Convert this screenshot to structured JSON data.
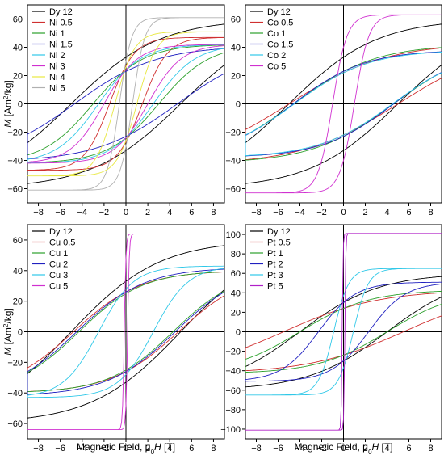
{
  "chart_data": [
    {
      "type": "line",
      "xlim": [
        -9,
        9
      ],
      "ylim": [
        -70,
        70
      ],
      "x_ticks": [
        -8,
        -6,
        -4,
        -2,
        0,
        2,
        4,
        6,
        8
      ],
      "y_ticks": [
        -60,
        -40,
        -20,
        0,
        20,
        40,
        60
      ],
      "ylabel": "M [Am²/kg]",
      "xlabel": "",
      "legend_position": "top-left",
      "series": [
        {
          "name": "Dy 12",
          "color": "#000000",
          "Ms": 60,
          "Hc": 5.0,
          "Mr": 33,
          "w": 1.1
        },
        {
          "name": "Ni 0.5",
          "color": "#d03030",
          "Ms": 47,
          "Hc": 1.5,
          "Mr": 27,
          "w": 1.8
        },
        {
          "name": "Ni 1",
          "color": "#2ca02c",
          "Ms": 42,
          "Hc": 3.0,
          "Mr": 24,
          "w": 1.5
        },
        {
          "name": "Ni 1.5",
          "color": "#2020c0",
          "Ms": 41,
          "Hc": 4.7,
          "Mr": 23,
          "w": 1.0
        },
        {
          "name": "Ni 2",
          "color": "#30c8e8",
          "Ms": 42,
          "Hc": 2.5,
          "Mr": 24,
          "w": 1.6
        },
        {
          "name": "Ni 3",
          "color": "#d030d0",
          "Ms": 42,
          "Hc": 2.0,
          "Mr": 24,
          "w": 1.6
        },
        {
          "name": "Ni 4",
          "color": "#e8e840",
          "Ms": 51,
          "Hc": 1.0,
          "Mr": 26,
          "w": 1.8
        },
        {
          "name": "Ni 5",
          "color": "#b0b0b0",
          "Ms": 61,
          "Hc": 0.6,
          "Mr": 30,
          "w": 1.6
        }
      ]
    },
    {
      "type": "line",
      "xlim": [
        -9,
        9
      ],
      "ylim": [
        -70,
        70
      ],
      "x_ticks": [
        -8,
        -6,
        -4,
        -2,
        0,
        2,
        4,
        6,
        8
      ],
      "y_ticks": [
        -60,
        -40,
        -20,
        0,
        20,
        40,
        60
      ],
      "ylabel": "",
      "xlabel": "",
      "legend_position": "top-left",
      "series": [
        {
          "name": "Dy 12",
          "color": "#000000",
          "Ms": 60,
          "Hc": 5.0,
          "Mr": 33,
          "w": 1.1
        },
        {
          "name": "Co 0.5",
          "color": "#d03030",
          "Ms": 43,
          "Hc": 5.0,
          "Mr": 22,
          "w": 1.5
        },
        {
          "name": "Co 1",
          "color": "#2ca02c",
          "Ms": 42,
          "Hc": 4.6,
          "Mr": 23,
          "w": 1.1
        },
        {
          "name": "Co 1.5",
          "color": "#2020c0",
          "Ms": 38,
          "Hc": 4.6,
          "Mr": 23,
          "w": 1.0
        },
        {
          "name": "Co 2",
          "color": "#30c8e8",
          "Ms": 38,
          "Hc": 4.5,
          "Mr": 22,
          "w": 1.1
        },
        {
          "name": "Co 5",
          "color": "#d030d0",
          "Ms": 63,
          "Hc": 1.0,
          "Mr": 40,
          "w": 0.6
        }
      ]
    },
    {
      "type": "line",
      "xlim": [
        -9,
        9
      ],
      "ylim": [
        -70,
        70
      ],
      "x_ticks": [
        -8,
        -6,
        -4,
        -2,
        0,
        2,
        4,
        6,
        8
      ],
      "y_ticks": [
        -60,
        -40,
        -20,
        0,
        20,
        40,
        60
      ],
      "ylabel": "M [Am²/kg]",
      "xlabel": "Magnetic Field, μ0H [T]",
      "legend_position": "top-left",
      "series": [
        {
          "name": "Dy 12",
          "color": "#000000",
          "Ms": 60,
          "Hc": 5.0,
          "Mr": 33,
          "w": 1.1
        },
        {
          "name": "Cu 0.5",
          "color": "#d03030",
          "Ms": 40,
          "Hc": 4.8,
          "Mr": 26,
          "w": 1.2
        },
        {
          "name": "Cu 1",
          "color": "#2ca02c",
          "Ms": 40,
          "Hc": 4.3,
          "Mr": 25,
          "w": 1.3
        },
        {
          "name": "Cu 2",
          "color": "#2020c0",
          "Ms": 42,
          "Hc": 4.5,
          "Mr": 26,
          "w": 1.0
        },
        {
          "name": "Cu 3",
          "color": "#30c8e8",
          "Ms": 43,
          "Hc": 2.5,
          "Mr": 28,
          "w": 1.3
        },
        {
          "name": "Cu 5",
          "color": "#d030d0",
          "Ms": 64,
          "Hc": 0.15,
          "Mr": 48,
          "w": 0.3
        }
      ]
    },
    {
      "type": "line",
      "xlim": [
        -9,
        9
      ],
      "ylim": [
        -110,
        110
      ],
      "x_ticks": [
        -8,
        -6,
        -4,
        -2,
        0,
        2,
        4,
        6,
        8
      ],
      "y_ticks": [
        -100,
        -80,
        -60,
        -40,
        -20,
        0,
        20,
        40,
        60,
        80,
        100
      ],
      "ylabel": "",
      "xlabel": "Magnetic Field, μ0H [T]",
      "legend_position": "top-left",
      "series": [
        {
          "name": "Dy 12",
          "color": "#000000",
          "Ms": 60,
          "Hc": 4.0,
          "Mr": 30,
          "w": 1.2
        },
        {
          "name": "Pt 0.5",
          "color": "#d03030",
          "Ms": 43,
          "Hc": 5.5,
          "Mr": 24,
          "w": 1.4
        },
        {
          "name": "Pt 1",
          "color": "#2ca02c",
          "Ms": 43,
          "Hc": 4.0,
          "Mr": 24,
          "w": 1.2
        },
        {
          "name": "Pt 2",
          "color": "#2020c0",
          "Ms": 51,
          "Hc": 2.3,
          "Mr": 30,
          "w": 1.0
        },
        {
          "name": "Pt 3",
          "color": "#30c8e8",
          "Ms": 65,
          "Hc": 0.9,
          "Mr": 37,
          "w": 0.9
        },
        {
          "name": "Pt 5",
          "color": "#b020c8",
          "Ms": 101,
          "Hc": 0.12,
          "Mr": 90,
          "w": 0.12
        }
      ]
    }
  ]
}
